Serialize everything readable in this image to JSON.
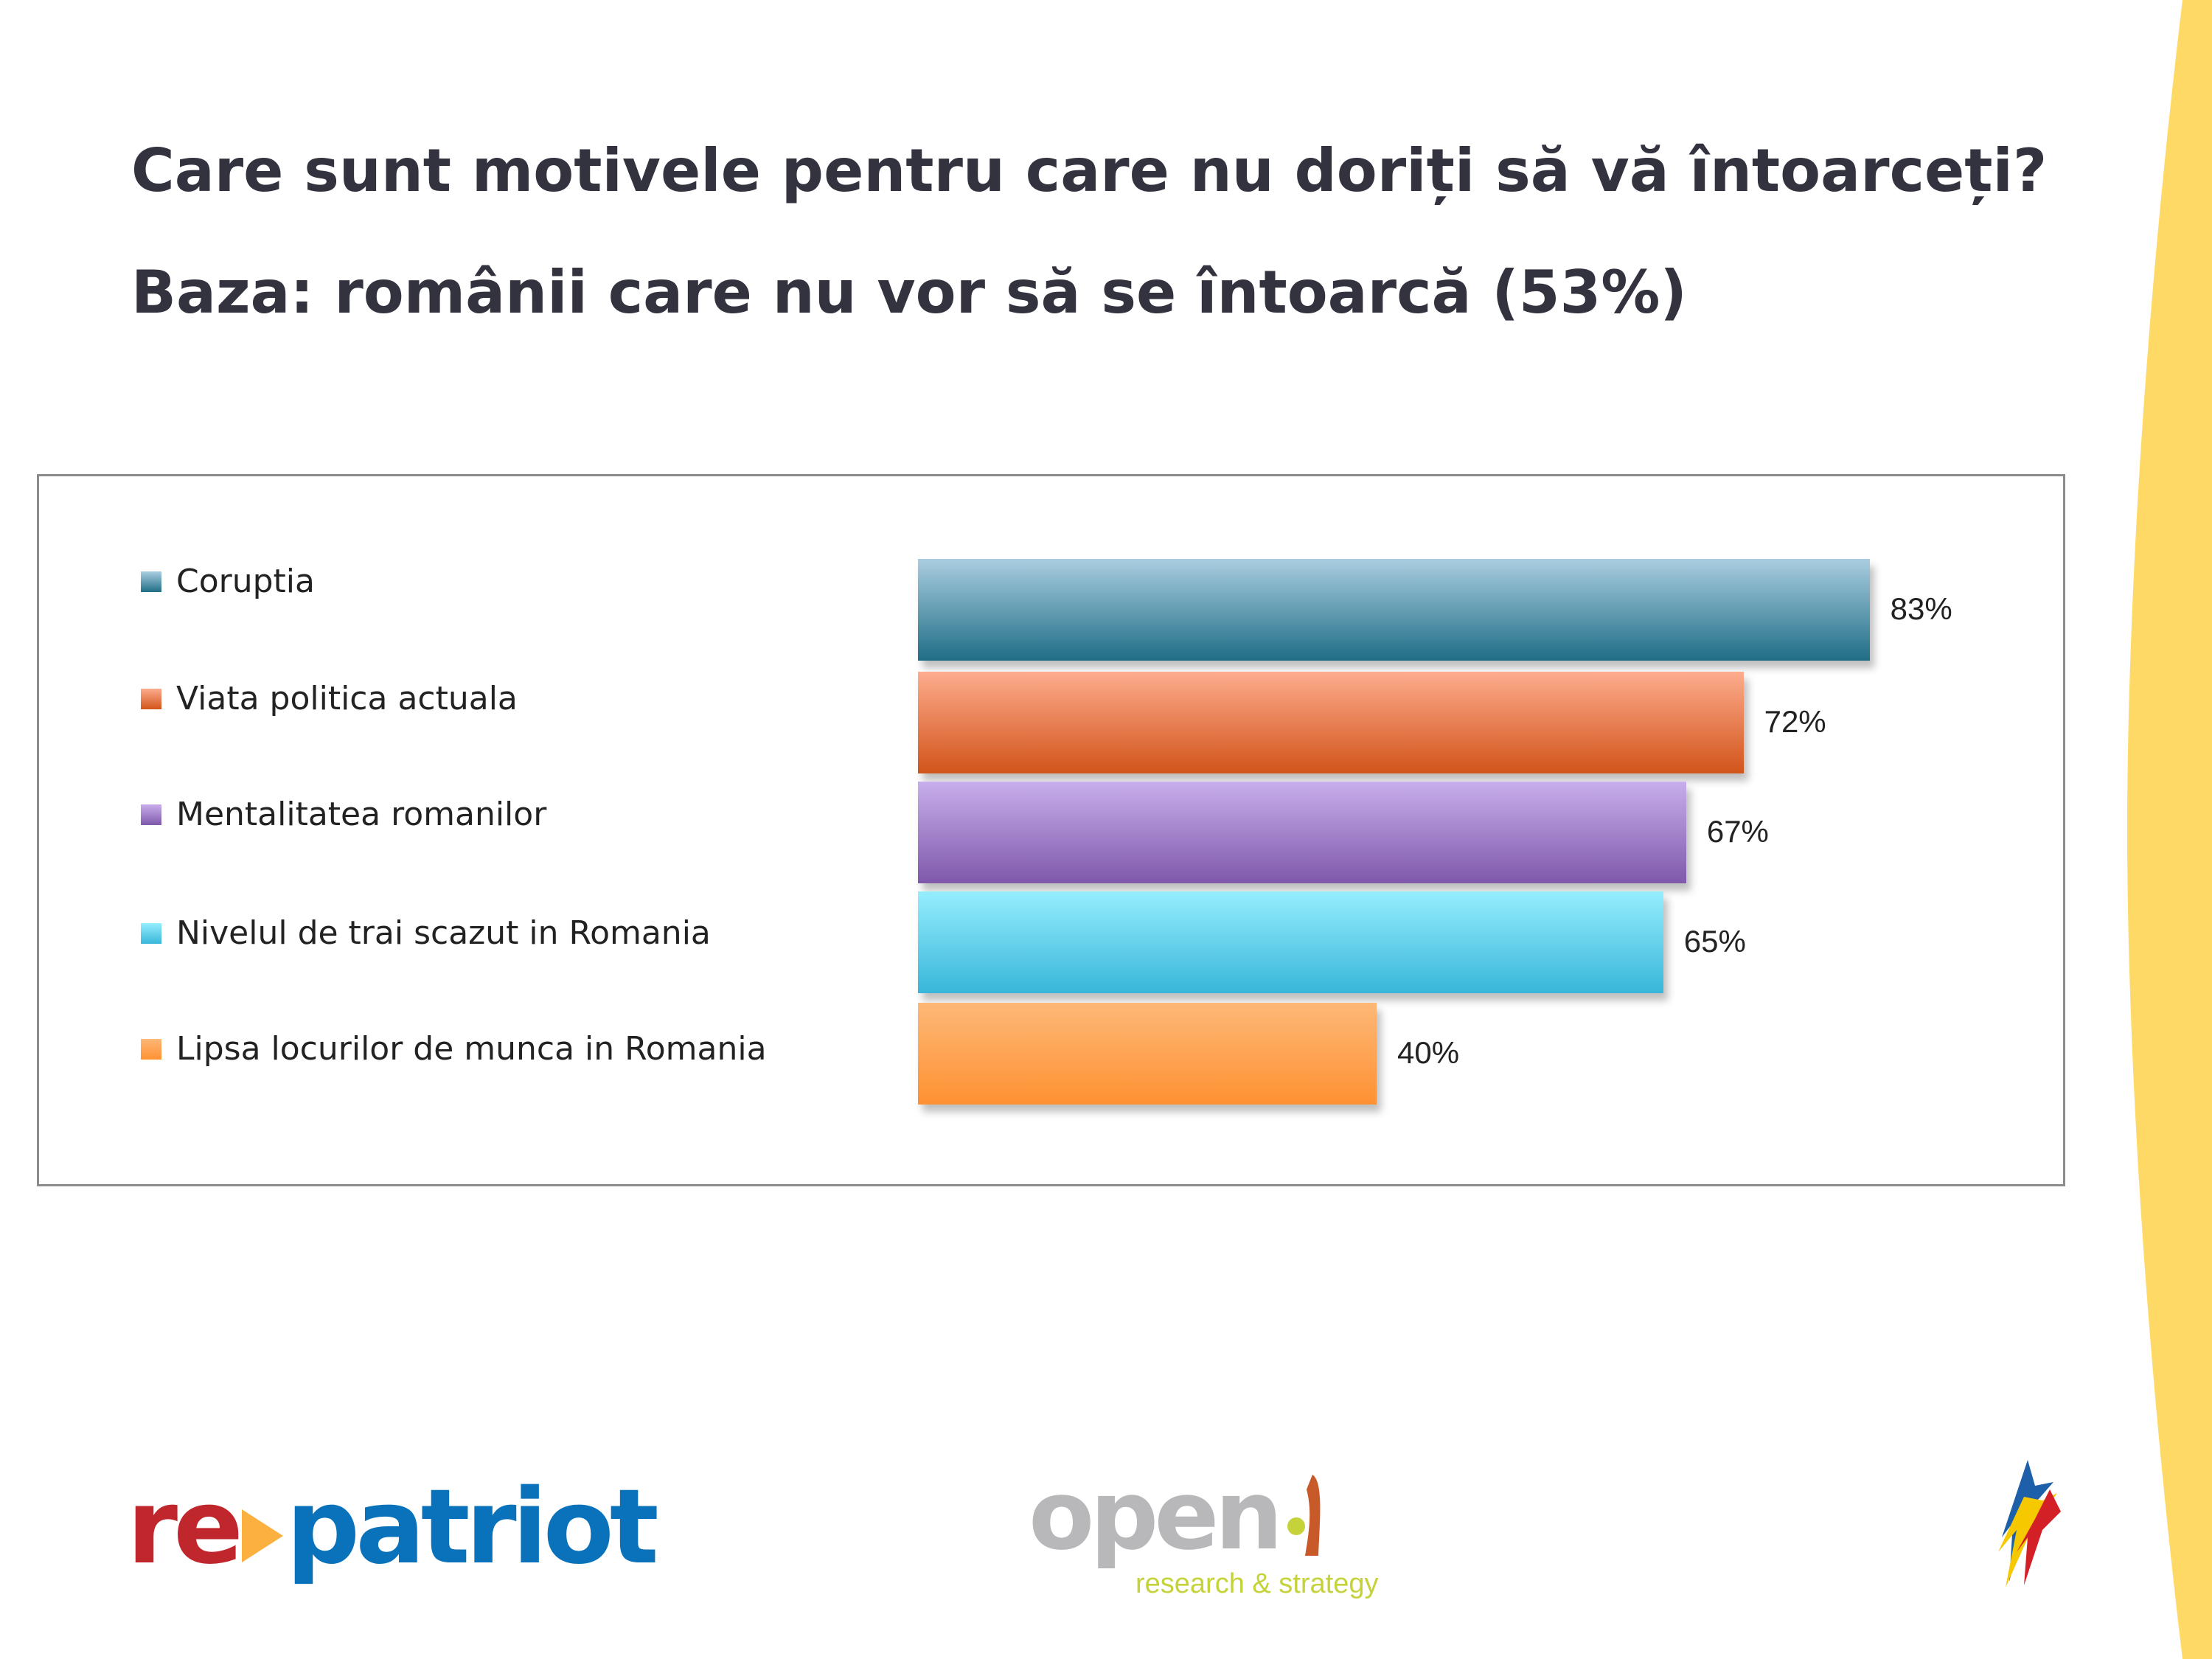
{
  "title": "Care sunt motivele pentru care nu doriți să vă întoarceți?",
  "subtitle": "Baza: românii care nu vor să se întoarcă (53%)",
  "chart_data": {
    "type": "bar",
    "orientation": "horizontal",
    "categories": [
      "Coruptia",
      "Viata politica actuala",
      "Mentalitatea romanilor",
      "Nivelul de trai scazut in Romania",
      "Lipsa locurilor de munca in Romania"
    ],
    "values": [
      83,
      72,
      67,
      65,
      40
    ],
    "value_labels": [
      "83%",
      "72%",
      "67%",
      "65%",
      "40%"
    ],
    "colors": [
      [
        "#aacde0",
        "#1f6e86"
      ],
      [
        "#fdac8e",
        "#d2541a"
      ],
      [
        "#c8aeec",
        "#7f58aa"
      ],
      [
        "#95eefe",
        "#38b6d9"
      ],
      [
        "#fdb877",
        "#fe9132"
      ]
    ],
    "legend_colors": [
      "#3d7f97",
      "#e06a44",
      "#9572c4",
      "#4fcbe8",
      "#fda050"
    ],
    "legend_placement": "left",
    "grid": false,
    "xlim": [
      0,
      100
    ],
    "title": "",
    "xlabel": "",
    "ylabel": ""
  },
  "logos": {
    "repatriot": {
      "re": "re",
      "patriot": "patriot"
    },
    "openi": {
      "word": "open",
      "tagline": "research & strategy"
    },
    "colors": {
      "red": "#c0272d",
      "blue": "#0a72ba",
      "orange": "#fbb040",
      "accent_yellow": "#ffd966"
    }
  }
}
